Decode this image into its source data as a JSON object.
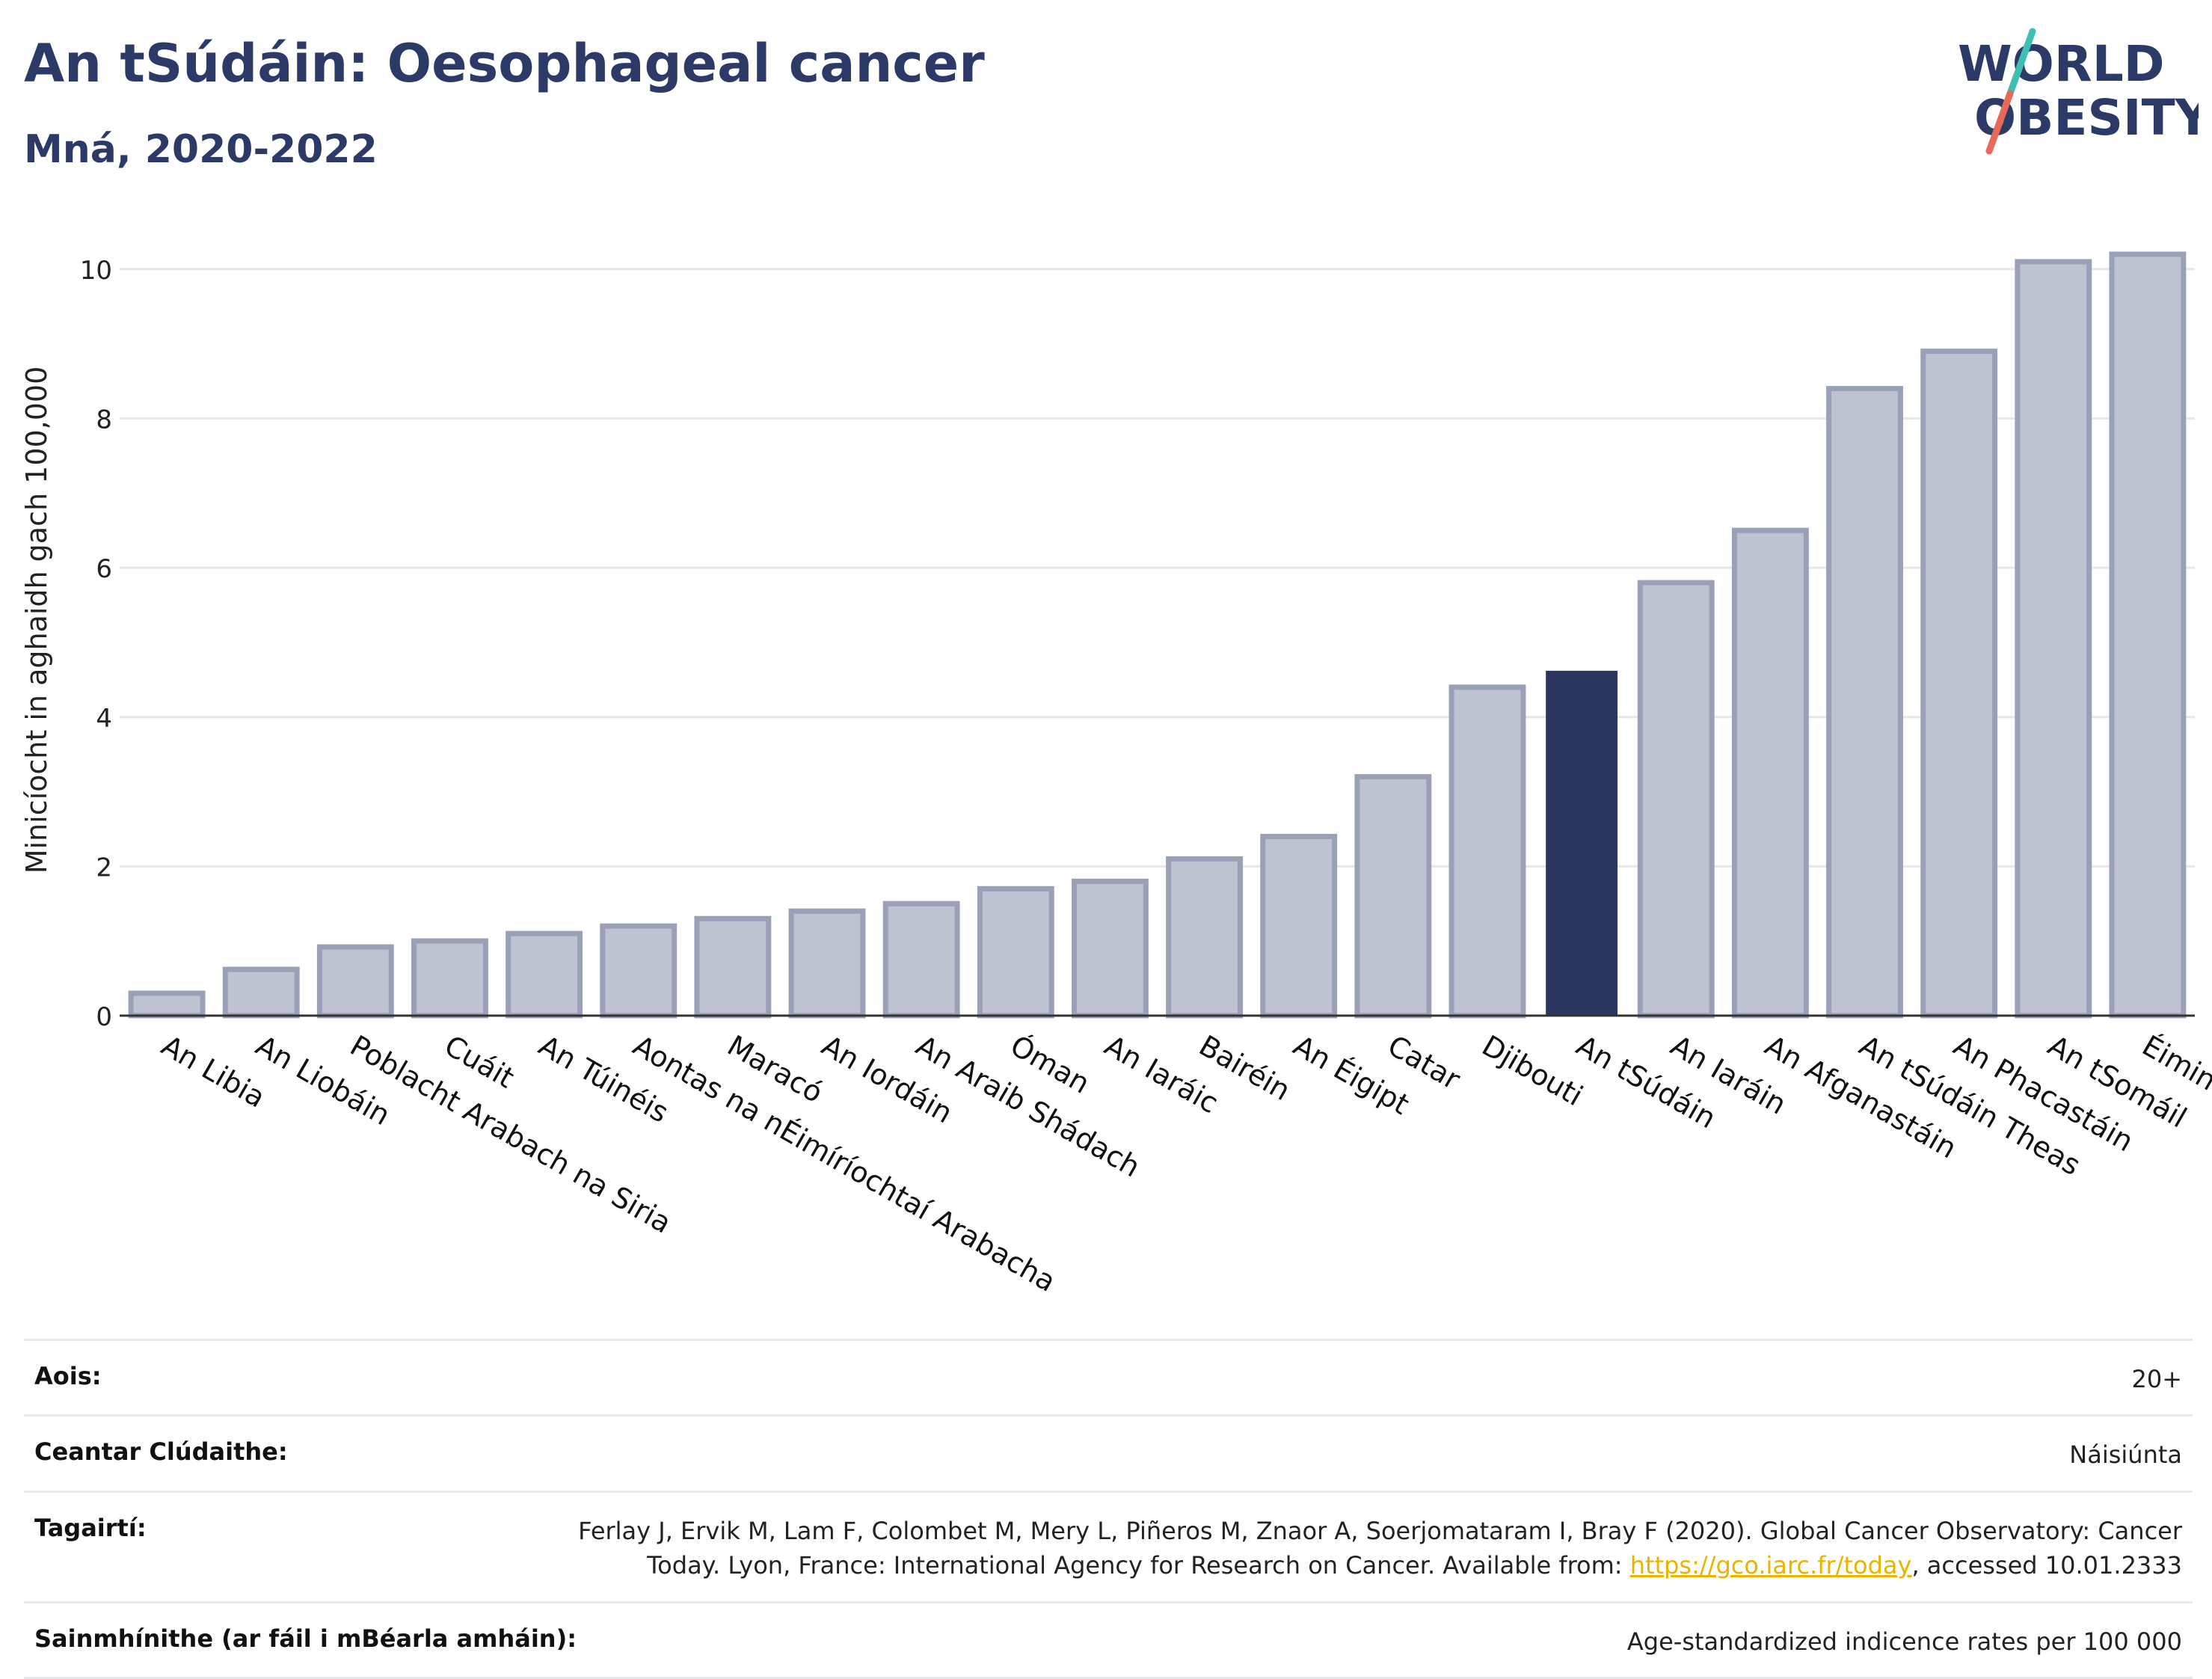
{
  "header": {
    "title": "An tSúdáin: Oesophageal cancer",
    "subtitle": "Mná, 2020-2022"
  },
  "logo": {
    "line1": "WORLD",
    "line2": "OBESITY",
    "colors": {
      "text": "#2b3a67",
      "slash_top": "#3fbfb4",
      "slash_bottom": "#e8685a"
    }
  },
  "chart_data": {
    "type": "bar",
    "ylabel": "Minicíocht in aghaidh gach 100,000",
    "ylim": [
      0,
      10.6
    ],
    "yticks": [
      0,
      2,
      4,
      6,
      8,
      10
    ],
    "grid": true,
    "highlight": "An tSúdáin",
    "colors": {
      "bar": "#bfc2d1",
      "bar_edge": "#9aa0b8",
      "highlight": "#2b3660",
      "grid": "#e6e6ec",
      "axis": "#333333"
    },
    "categories": [
      "An Libia",
      "An Liobáin",
      "Poblacht Arabach na Siria",
      "Cuáit",
      "An Túinéis",
      "Aontas na nÉimíríochtaí Arabacha",
      "Maracó",
      "An Iordáin",
      "An Araib Shádach",
      "Óman",
      "An Iaráic",
      "Bairéin",
      "An Éigipt",
      "Catar",
      "Djibouti",
      "An tSúdáin",
      "An Iaráin",
      "An Afganastáin",
      "An tSúdáin Theas",
      "An Phacastáin",
      "An tSomáil",
      "Éimin"
    ],
    "values": [
      0.3,
      0.62,
      0.92,
      1.0,
      1.1,
      1.2,
      1.3,
      1.4,
      1.5,
      1.7,
      1.8,
      2.1,
      2.4,
      3.2,
      4.4,
      4.62,
      5.8,
      6.5,
      8.4,
      8.9,
      10.1,
      10.2
    ]
  },
  "meta": {
    "age_label": "Aois:",
    "age_value": "20+",
    "coverage_label": "Ceantar Clúdaithe:",
    "coverage_value": "Náisiúnta",
    "refs_label": "Tagairtí:",
    "refs_line1": "Ferlay J, Ervik M, Lam F, Colombet M, Mery L, Piñeros M, Znaor A, Soerjomataram I, Bray F (2020). Global Cancer Observatory: Cancer",
    "refs_line2_pre": "Today. Lyon, France: International Agency for Research on Cancer. Available from: ",
    "refs_link": "https://gco.iarc.fr/today",
    "refs_line2_post": ", accessed 10.01.2333",
    "defs_label": "Sainmhínithe (ar fáil i mBéarla amháin):",
    "defs_value": "Age-standardized indicence rates per 100 000"
  }
}
